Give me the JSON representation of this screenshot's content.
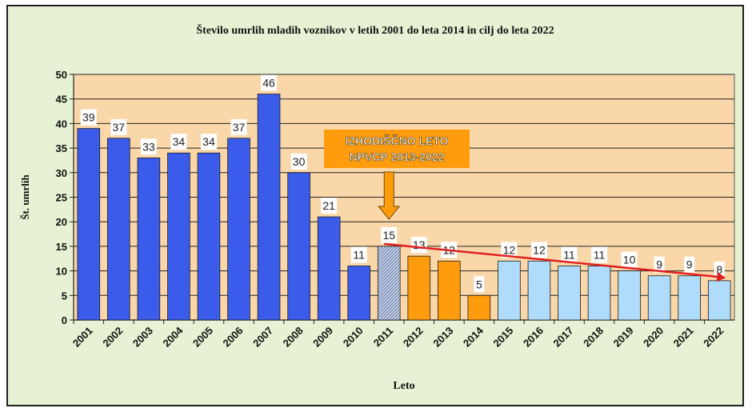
{
  "chart_data": {
    "type": "bar",
    "title": "Število umrlih mladih voznikov v letih 2001 do leta 2014 in cilj do leta 2022",
    "xlabel": "Leto",
    "ylabel": "Št. umrlih",
    "ylim": [
      0,
      50
    ],
    "yticks": [
      0,
      5,
      10,
      15,
      20,
      25,
      30,
      35,
      40,
      45,
      50
    ],
    "grid": true,
    "categories": [
      "2001",
      "2002",
      "2003",
      "2004",
      "2005",
      "2006",
      "2007",
      "2008",
      "2009",
      "2010",
      "2011",
      "2012",
      "2013",
      "2014",
      "2015",
      "2016",
      "2017",
      "2018",
      "2019",
      "2020",
      "2021",
      "2022"
    ],
    "values": [
      39,
      37,
      33,
      34,
      34,
      37,
      46,
      30,
      21,
      11,
      15,
      13,
      12,
      5,
      12,
      12,
      11,
      11,
      10,
      9,
      9,
      8
    ],
    "groups": [
      {
        "years": [
          "2001",
          "2002",
          "2003",
          "2004",
          "2005",
          "2006",
          "2007",
          "2008",
          "2009",
          "2010"
        ],
        "color": "#3b5bea"
      },
      {
        "years": [
          "2011"
        ],
        "color": "#aeb9d6",
        "pattern": "hatched"
      },
      {
        "years": [
          "2012",
          "2013",
          "2014"
        ],
        "color": "#ff9c0d"
      },
      {
        "years": [
          "2015",
          "2016",
          "2017",
          "2018",
          "2019",
          "2020",
          "2021",
          "2022"
        ],
        "color": "#aedcfa"
      }
    ],
    "annotation": {
      "lines": [
        "IZHODIŠČNO LETO",
        "NPVCP 2013-2022"
      ],
      "target_year": "2011",
      "box_color": "#ff9c0d",
      "arrow_color": "#ff9c0d"
    },
    "trend_line": {
      "from_year": "2011",
      "from_value": 15.5,
      "to_year": "2022",
      "to_value": 8.6,
      "color": "#e02020"
    },
    "colors": {
      "plot_bg": "#fad7a8",
      "frame_bg": "#e6f2d3",
      "gridline": "#222222"
    }
  }
}
